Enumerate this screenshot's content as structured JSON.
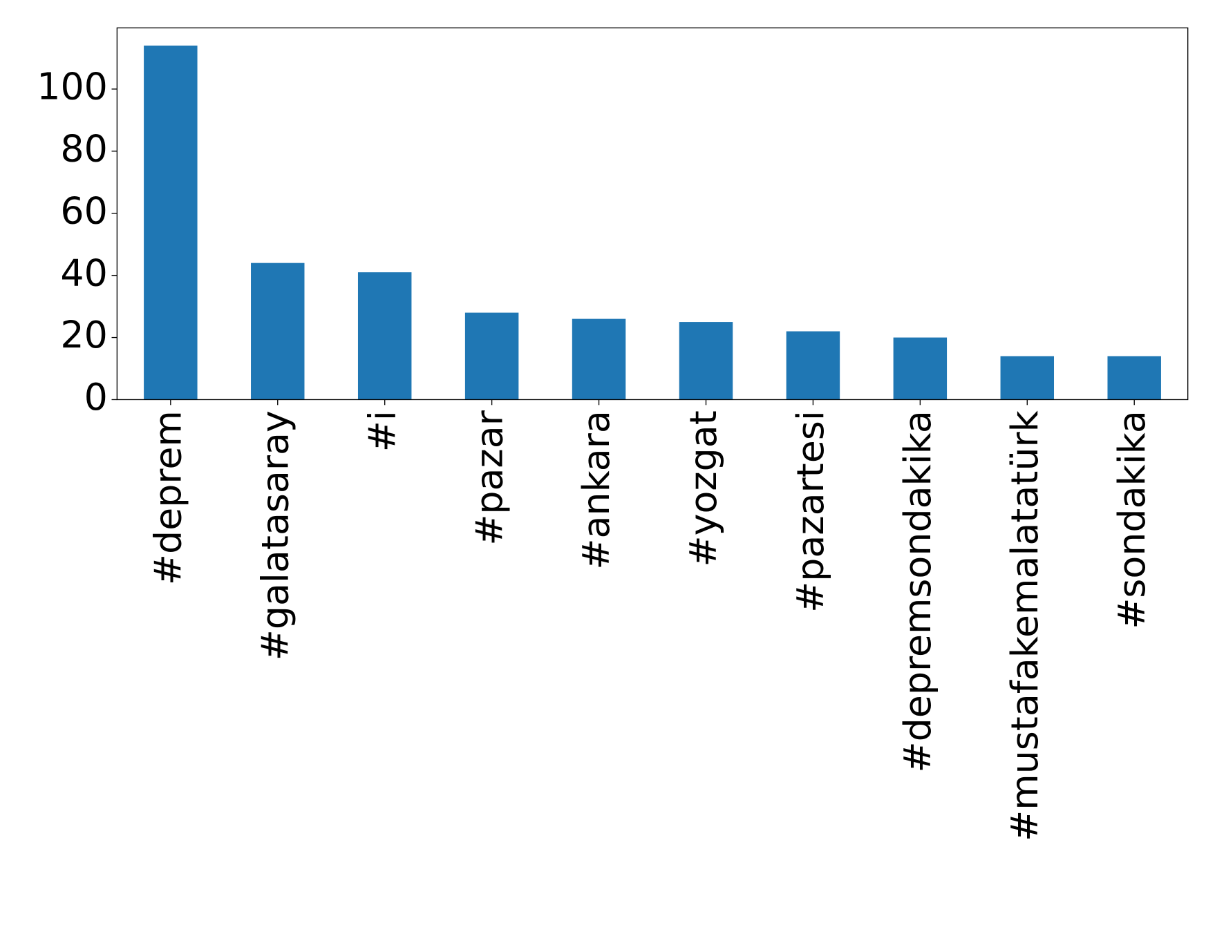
{
  "chart_data": {
    "type": "bar",
    "categories": [
      "#deprem",
      "#galatasaray",
      "#i",
      "#pazar",
      "#ankara",
      "#yozgat",
      "#pazartesi",
      "#depremsondakika",
      "#mustafakemalatatürk",
      "#sondakika"
    ],
    "values": [
      114,
      44,
      41,
      28,
      26,
      25,
      22,
      20,
      14,
      14
    ],
    "color": "#1f77b4",
    "ylim": [
      0,
      119.7
    ],
    "yticks": [
      0,
      20,
      40,
      60,
      80,
      100
    ],
    "grid": false
  }
}
